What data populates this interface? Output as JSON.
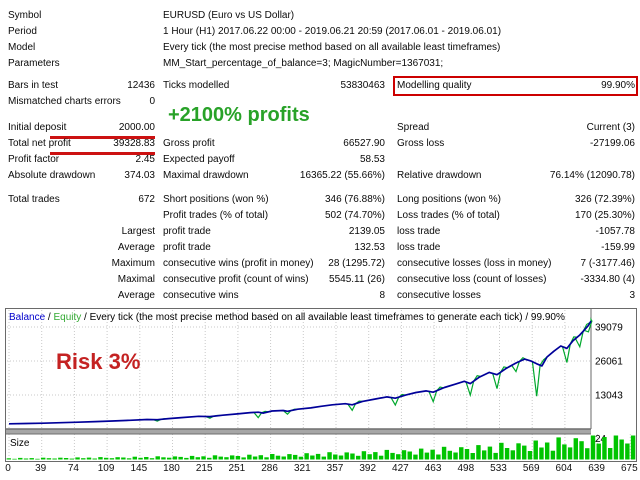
{
  "colors": {
    "balance_line": "#000099",
    "equity_line": "#00A82C",
    "size_bars": "#00C400",
    "grid": "#c9c9c9",
    "annotation_green": "#28a228",
    "annotation_red": "#c42222",
    "highlight_box": "#cc0000",
    "legend_balance": "#0000cc",
    "legend_equity": "#33aa33",
    "splitter": "#a6a6a6",
    "border": "#6a6a6a"
  },
  "annotations": {
    "profit_text": "+2100% profits",
    "risk_text": "Risk 3%"
  },
  "report": {
    "rows": [
      {
        "type": "info",
        "a": "Symbol",
        "b": "EURUSD (Euro vs US Dollar)"
      },
      {
        "type": "info",
        "a": "Period",
        "b": "1 Hour (H1) 2017.06.22 00:00 - 2019.06.21 20:59  (2017.06.01 - 2019.06.01)"
      },
      {
        "type": "info",
        "a": "Model",
        "b": "Every tick (the most precise method based on all available least timeframes)"
      },
      {
        "type": "info",
        "a": "Parameters",
        "b": "MM_Start_percentage_of_balance=3; MagicNumber=1367031;"
      },
      {
        "gap": 6
      },
      {
        "a": "Bars in test",
        "av": "12436",
        "b": "Ticks modelled",
        "bv": "53830463",
        "c": "Modelling quality",
        "cv": "99.90%",
        "box_c": true
      },
      {
        "a": "Mismatched charts errors",
        "av": "0"
      },
      {
        "gap": 10
      },
      {
        "a": "Initial deposit",
        "av": "2000.00",
        "underline_av": true,
        "c": "Spread",
        "cv": "Current (3)"
      },
      {
        "a": "Total net profit",
        "av": "39328.83",
        "underline_av": true,
        "b": "Gross profit",
        "bv": "66527.90",
        "c": "Gross loss",
        "cv": "-27199.06"
      },
      {
        "a": "Profit factor",
        "av": "2.45",
        "b": "Expected payoff",
        "bv": "58.53"
      },
      {
        "a": "Absolute drawdown",
        "av": "374.03",
        "b": "Maximal drawdown",
        "bv": "16365.22 (55.66%)",
        "c": "Relative drawdown",
        "cv": "76.14% (12090.78)"
      },
      {
        "gap": 8
      },
      {
        "a": "Total trades",
        "av": "672",
        "b": "Short positions (won %)",
        "bv": "346 (76.88%)",
        "c": "Long positions (won %)",
        "cv": "326 (72.39%)"
      },
      {
        "b": "Profit trades (% of total)",
        "bv": "502 (74.70%)",
        "c": "Loss trades (% of total)",
        "cv": "170 (25.30%)"
      },
      {
        "av": "Largest",
        "b": "profit trade",
        "bv": "2139.05",
        "c": "loss trade",
        "cv": "-1057.78"
      },
      {
        "av": "Average",
        "b": "profit trade",
        "bv": "132.53",
        "c": "loss trade",
        "cv": "-159.99"
      },
      {
        "av": "Maximum",
        "b": "consecutive wins (profit in money)",
        "bv": "28 (1295.72)",
        "c": "consecutive losses (loss in money)",
        "cv": "7 (-3177.46)"
      },
      {
        "av": "Maximal",
        "b": "consecutive profit (count of wins)",
        "bv": "5545.11 (26)",
        "c": "consecutive loss (count of losses)",
        "cv": "-3334.80 (4)"
      },
      {
        "av": "Average",
        "b": "consecutive wins",
        "bv": "8",
        "c": "consecutive losses",
        "cv": "3"
      }
    ]
  },
  "chart_data": {
    "type": "line",
    "legend_balance": "Balance",
    "legend_equity": "Equity",
    "legend_rest": " / Every tick (the most precise method based on all available least timeframes to generate each tick) / 99.90%",
    "size_label": "Size",
    "legend_position": "top-left",
    "grid": true,
    "x_ticks": [
      0,
      39,
      74,
      109,
      145,
      180,
      215,
      251,
      286,
      321,
      357,
      392,
      427,
      463,
      498,
      533,
      569,
      604,
      639,
      675
    ],
    "y_ticks": [
      39079,
      26061,
      13043,
      24
    ],
    "xlim": [
      0,
      675
    ],
    "size_max": 24,
    "balance_series": [
      [
        0,
        2000
      ],
      [
        20,
        2120
      ],
      [
        40,
        2260
      ],
      [
        60,
        2430
      ],
      [
        80,
        2620
      ],
      [
        100,
        2840
      ],
      [
        120,
        3080
      ],
      [
        140,
        3350
      ],
      [
        160,
        3660
      ],
      [
        172,
        3580
      ],
      [
        185,
        4000
      ],
      [
        200,
        4400
      ],
      [
        220,
        4870
      ],
      [
        233,
        4760
      ],
      [
        248,
        5300
      ],
      [
        265,
        5800
      ],
      [
        280,
        6300
      ],
      [
        289,
        6450
      ],
      [
        295,
        6100
      ],
      [
        305,
        6900
      ],
      [
        318,
        7100
      ],
      [
        323,
        6800
      ],
      [
        335,
        7600
      ],
      [
        350,
        8100
      ],
      [
        362,
        8700
      ],
      [
        375,
        9300
      ],
      [
        390,
        9700
      ],
      [
        398,
        9300
      ],
      [
        410,
        10600
      ],
      [
        425,
        11500
      ],
      [
        438,
        12300
      ],
      [
        448,
        11800
      ],
      [
        460,
        13000
      ],
      [
        472,
        14000
      ],
      [
        484,
        14600
      ],
      [
        492,
        14100
      ],
      [
        505,
        15900
      ],
      [
        518,
        17200
      ],
      [
        528,
        18300
      ],
      [
        535,
        17400
      ],
      [
        545,
        19800
      ],
      [
        557,
        21700
      ],
      [
        566,
        20800
      ],
      [
        577,
        23300
      ],
      [
        588,
        25300
      ],
      [
        598,
        26800
      ],
      [
        606,
        26000
      ],
      [
        612,
        25000
      ],
      [
        618,
        24200
      ],
      [
        624,
        27600
      ],
      [
        632,
        29800
      ],
      [
        640,
        31800
      ],
      [
        647,
        30900
      ],
      [
        654,
        33800
      ],
      [
        662,
        36000
      ],
      [
        668,
        38200
      ],
      [
        672,
        39700
      ],
      [
        675,
        41330
      ]
    ],
    "equity_dips": [
      [
        172,
        3050
      ],
      [
        233,
        4150
      ],
      [
        289,
        4400
      ],
      [
        323,
        5700
      ],
      [
        398,
        7200
      ],
      [
        448,
        9200
      ],
      [
        492,
        10500
      ],
      [
        535,
        13000
      ],
      [
        566,
        15500
      ],
      [
        588,
        22000
      ],
      [
        612,
        12600
      ],
      [
        647,
        25500
      ],
      [
        662,
        31500
      ],
      [
        672,
        37200
      ]
    ],
    "size_bars": [
      1.2,
      0.7,
      1.6,
      1.0,
      1.4,
      0.7,
      1.8,
      1.3,
      1.0,
      1.8,
      1.5,
      0.9,
      2.1,
      1.3,
      1.9,
      1.0,
      2.4,
      1.7,
      1.3,
      2.3,
      2.0,
      1.2,
      2.8,
      1.7,
      2.5,
      1.3,
      3.2,
      2.2,
      1.8,
      3.1,
      2.6,
      1.6,
      3.6,
      2.3,
      3.2,
      1.7,
      4.2,
      2.9,
      2.3,
      4.1,
      3.5,
      2.1,
      4.8,
      3.0,
      4.3,
      2.2,
      5.5,
      3.8,
      3.0,
      5.4,
      4.6,
      2.8,
      6.3,
      4.0,
      5.6,
      2.9,
      7.3,
      5.0,
      4.0,
      7.1,
      6.0,
      3.7,
      8.3,
      5.3,
      7.4,
      3.8,
      9.6,
      6.6,
      5.3,
      9.3,
      8.0,
      4.9,
      10.9,
      6.9,
      9.8,
      5.0,
      12.7,
      8.7,
      7.0,
      12.3,
      10.5,
      6.5,
      14.4,
      9.1,
      12.9,
      6.6,
      16.7,
      11.5,
      9.2,
      16.2,
      13.9,
      8.5,
      19.0,
      12.0,
      17.0,
      8.8,
      22.1,
      15.1,
      12.1,
      21.3,
      18.3,
      11.3,
      24.0,
      15.9,
      22.5,
      11.5,
      24.0,
      20.0,
      16.0,
      24.0
    ]
  }
}
